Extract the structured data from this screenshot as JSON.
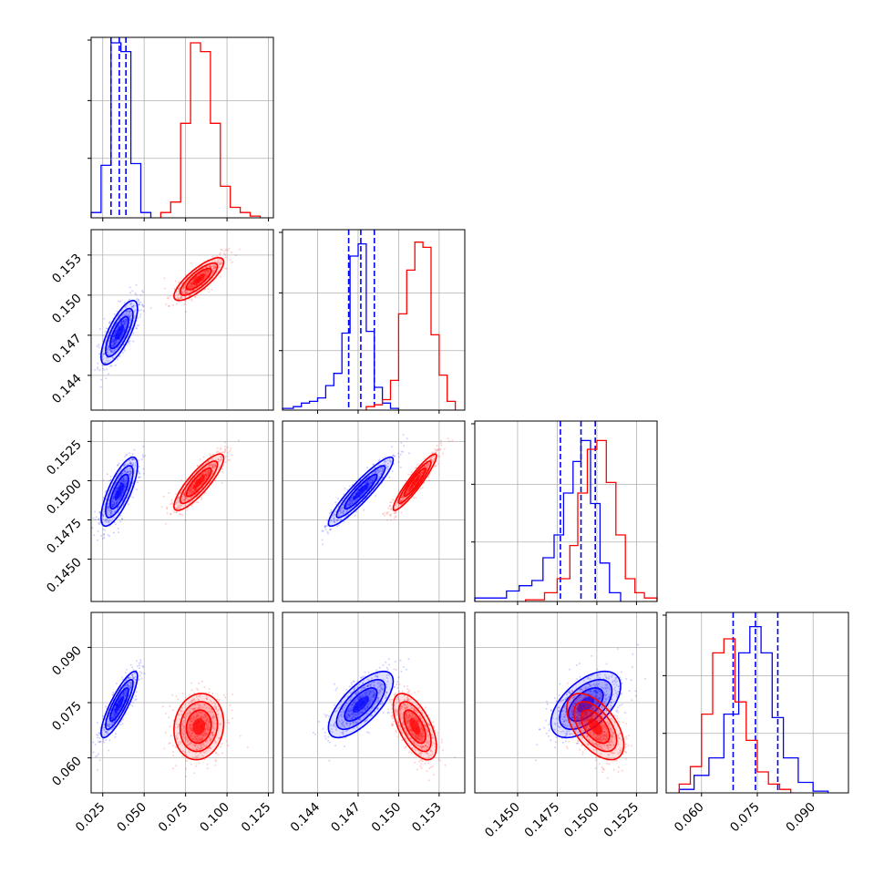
{
  "chart_data": {
    "type": "corner",
    "title": "",
    "grid": true,
    "colors": {
      "series_a": "#0000ff",
      "series_b": "#ff0000",
      "grid": "#b0b0b0"
    },
    "params": [
      {
        "ticks": [
          0.025,
          0.05,
          0.075,
          0.1,
          0.125
        ],
        "tick_labels": [
          "0.025",
          "0.050",
          "0.075",
          "0.100",
          "0.125"
        ],
        "range": [
          0.018,
          0.128
        ]
      },
      {
        "ticks": [
          0.144,
          0.147,
          0.15,
          0.153
        ],
        "tick_labels": [
          "0.144",
          "0.147",
          "0.150",
          "0.153"
        ],
        "range": [
          0.1414,
          0.1549
        ]
      },
      {
        "ticks": [
          0.145,
          0.1475,
          0.15,
          0.1525
        ],
        "tick_labels": [
          "0.1450",
          "0.1475",
          "0.1500",
          "0.1525"
        ],
        "range": [
          0.1423,
          0.1538
        ]
      },
      {
        "ticks": [
          0.06,
          0.075,
          0.09
        ],
        "tick_labels": [
          "0.060",
          "0.075",
          "0.090"
        ],
        "range": [
          0.0505,
          0.0995
        ]
      }
    ],
    "series": [
      {
        "color": "#0000ff",
        "mean": [
          0.035,
          0.1472,
          0.1493,
          0.0745
        ],
        "sd": [
          0.0055,
          0.0012,
          0.0011,
          0.0045
        ],
        "quantiles": [
          [
            0.03,
            0.035,
            0.039
          ],
          [
            0.1463,
            0.1472,
            0.1482
          ],
          [
            0.1477,
            0.149,
            0.1499
          ],
          [
            0.0685,
            0.0745,
            0.0805
          ]
        ],
        "histograms": [
          {
            "edges": [
              0.018,
              0.024,
              0.03,
              0.036,
              0.042,
              0.048,
              0.054
            ],
            "counts": [
              0.03,
              0.3,
              1.0,
              0.95,
              0.31,
              0.03
            ]
          },
          {
            "edges": [
              0.1414,
              0.1422,
              0.1428,
              0.1434,
              0.144,
              0.1446,
              0.1452,
              0.1458,
              0.1464,
              0.147,
              0.1476,
              0.1482,
              0.1488,
              0.1494,
              0.15
            ],
            "counts": [
              0.01,
              0.02,
              0.04,
              0.05,
              0.07,
              0.14,
              0.21,
              0.44,
              0.88,
              0.95,
              0.45,
              0.13,
              0.04,
              0.01
            ]
          },
          {
            "edges": [
              0.1423,
              0.1435,
              0.1443,
              0.1451,
              0.1459,
              0.1466,
              0.1473,
              0.1479,
              0.1485,
              0.149,
              0.1496,
              0.1502,
              0.1508,
              0.1515
            ],
            "counts": [
              0.02,
              0.02,
              0.06,
              0.09,
              0.12,
              0.25,
              0.38,
              0.62,
              0.8,
              0.92,
              0.56,
              0.22,
              0.05
            ]
          },
          {
            "edges": [
              0.054,
              0.058,
              0.062,
              0.066,
              0.07,
              0.073,
              0.076,
              0.079,
              0.082,
              0.086,
              0.09,
              0.094
            ],
            "counts": [
              0.02,
              0.1,
              0.2,
              0.45,
              0.8,
              0.95,
              0.8,
              0.43,
              0.2,
              0.06,
              0.01
            ]
          }
        ]
      },
      {
        "color": "#ff0000",
        "mean": [
          0.083,
          0.1512,
          0.1499,
          0.0685
        ],
        "sd": [
          0.0075,
          0.0008,
          0.0009,
          0.0045
        ],
        "quantiles": null,
        "histograms": [
          {
            "edges": [
              0.06,
              0.066,
              0.072,
              0.078,
              0.084,
              0.09,
              0.096,
              0.102,
              0.108,
              0.114,
              0.12
            ],
            "counts": [
              0.03,
              0.09,
              0.54,
              1.0,
              0.95,
              0.54,
              0.18,
              0.06,
              0.03,
              0.01
            ]
          },
          {
            "edges": [
              0.1476,
              0.1482,
              0.1488,
              0.1494,
              0.15,
              0.1506,
              0.1512,
              0.1518,
              0.1524,
              0.153,
              0.1536,
              0.1542
            ],
            "counts": [
              0.02,
              0.03,
              0.06,
              0.17,
              0.55,
              0.8,
              0.96,
              0.93,
              0.43,
              0.2,
              0.05
            ]
          },
          {
            "edges": [
              0.1455,
              0.1467,
              0.1475,
              0.1483,
              0.1488,
              0.1494,
              0.15,
              0.1506,
              0.1512,
              0.1518,
              0.1524,
              0.153,
              0.1538
            ],
            "counts": [
              0.01,
              0.05,
              0.13,
              0.32,
              0.62,
              0.87,
              0.92,
              0.68,
              0.38,
              0.13,
              0.05,
              0.02
            ]
          },
          {
            "edges": [
              0.054,
              0.057,
              0.06,
              0.063,
              0.066,
              0.069,
              0.072,
              0.075,
              0.078,
              0.081,
              0.084
            ],
            "counts": [
              0.05,
              0.15,
              0.45,
              0.8,
              0.88,
              0.52,
              0.3,
              0.12,
              0.05,
              0.02
            ]
          }
        ]
      }
    ]
  }
}
